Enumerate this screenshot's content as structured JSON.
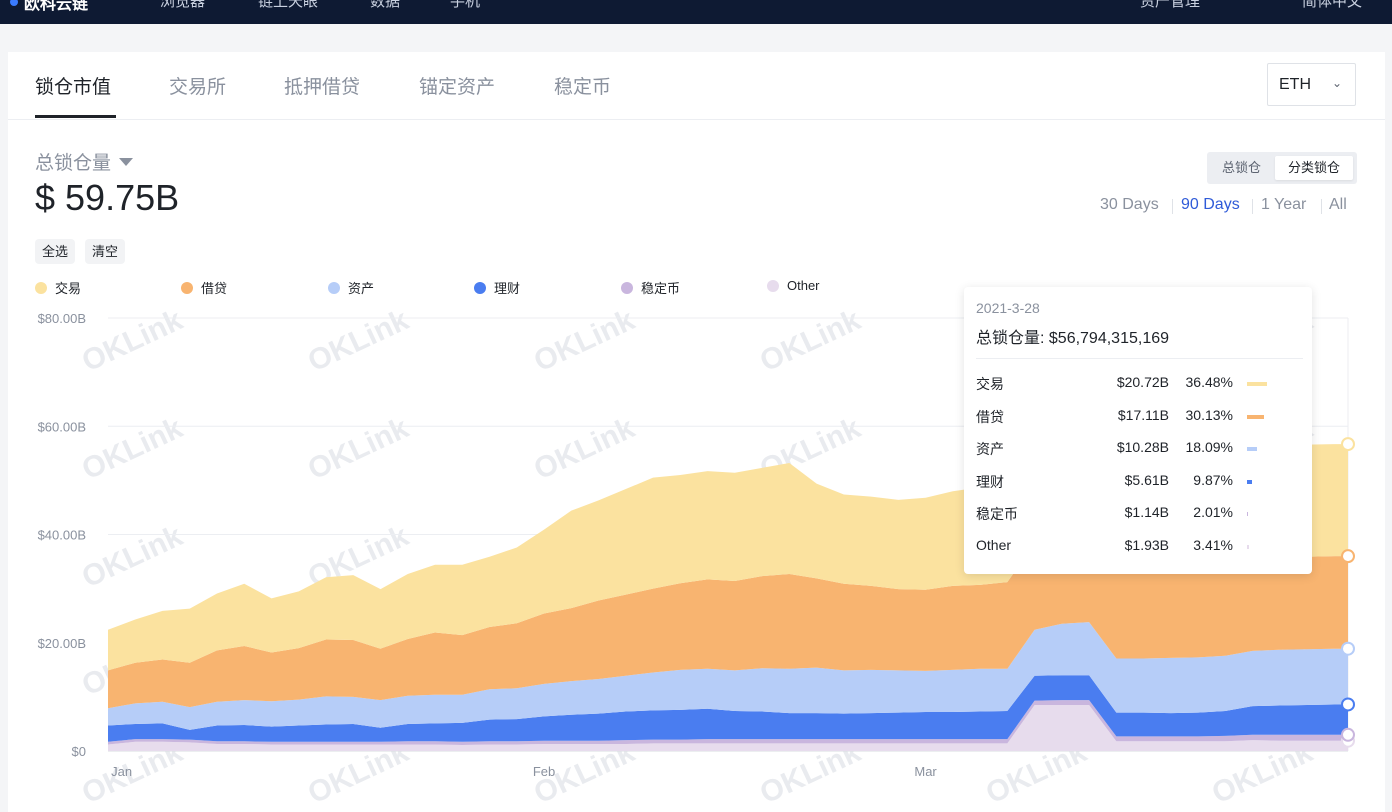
{
  "topbar": {
    "brand": "欧科云链",
    "nav": [
      "浏览器",
      "链上天眼",
      "数据",
      "手机"
    ],
    "right": [
      "资产管理",
      "简体中文"
    ]
  },
  "tabs": [
    {
      "label": "锁仓市值",
      "active": true
    },
    {
      "label": "交易所",
      "active": false
    },
    {
      "label": "抵押借贷",
      "active": false
    },
    {
      "label": "锚定资产",
      "active": false
    },
    {
      "label": "稳定币",
      "active": false
    }
  ],
  "chain_select": {
    "value": "ETH"
  },
  "metric": {
    "label": "总锁仓量",
    "value": "$ 59.75B"
  },
  "select_buttons": {
    "select_all": "全选",
    "clear": "清空"
  },
  "view_toggle": {
    "options": [
      "总锁仓",
      "分类锁仓"
    ],
    "active": "分类锁仓"
  },
  "time_ranges": {
    "options": [
      "30 Days",
      "90 Days",
      "1 Year",
      "All"
    ],
    "active": "90 Days"
  },
  "colors": {
    "交易": "#fbe29f",
    "借贷": "#f8b470",
    "资产": "#b6cdf8",
    "理财": "#4a7df0",
    "稳定币": "#c9b6de",
    "Other": "#e7dced",
    "accent": "#2f5bd8"
  },
  "watermark": "OKLink",
  "tooltip": {
    "date": "2021-3-28",
    "total_label": "总锁仓量: $56,794,315,169",
    "rows": [
      {
        "name": "交易",
        "amount": "$20.72B",
        "pct": "36.48%",
        "share": 0.3648
      },
      {
        "name": "借贷",
        "amount": "$17.11B",
        "pct": "30.13%",
        "share": 0.3013
      },
      {
        "name": "资产",
        "amount": "$10.28B",
        "pct": "18.09%",
        "share": 0.1809
      },
      {
        "name": "理财",
        "amount": "$5.61B",
        "pct": "9.87%",
        "share": 0.0987
      },
      {
        "name": "稳定币",
        "amount": "$1.14B",
        "pct": "2.01%",
        "share": 0.0201
      },
      {
        "name": "Other",
        "amount": "$1.93B",
        "pct": "3.41%",
        "share": 0.0341
      }
    ]
  },
  "chart_data": {
    "type": "area",
    "stacked": true,
    "ylim": [
      0,
      80
    ],
    "y_ticks": [
      "$0",
      "$20.00B",
      "$40.00B",
      "$60.00B",
      "$80.00B"
    ],
    "x_tick_labels": [
      {
        "label": "Jan",
        "day": 1
      },
      {
        "label": "Feb",
        "day": 32
      },
      {
        "label": "Mar",
        "day": 60
      }
    ],
    "x": [
      0,
      2,
      4,
      6,
      8,
      10,
      12,
      14,
      16,
      18,
      20,
      22,
      24,
      26,
      28,
      30,
      32,
      34,
      36,
      38,
      40,
      42,
      44,
      46,
      48,
      50,
      52,
      54,
      56,
      58,
      60,
      62,
      64,
      66,
      68,
      70,
      72,
      74,
      76,
      78,
      80,
      82,
      84,
      86,
      88,
      90,
      91
    ],
    "series": [
      {
        "name": "Other",
        "values": [
          1.2,
          1.7,
          1.7,
          1.6,
          1.3,
          1.3,
          1.2,
          1.2,
          1.2,
          1.2,
          1.2,
          1.2,
          1.2,
          1.1,
          1.2,
          1.2,
          1.3,
          1.3,
          1.3,
          1.3,
          1.4,
          1.4,
          1.4,
          1.4,
          1.4,
          1.4,
          1.4,
          1.4,
          1.4,
          1.4,
          1.4,
          1.4,
          1.4,
          1.4,
          8.5,
          8.5,
          8.5,
          1.8,
          1.8,
          1.8,
          1.8,
          1.8,
          2.0,
          1.9,
          1.9,
          1.9,
          1.9
        ]
      },
      {
        "name": "稳定币",
        "values": [
          0.5,
          0.5,
          0.5,
          0.5,
          0.5,
          0.5,
          0.5,
          0.5,
          0.5,
          0.5,
          0.5,
          0.6,
          0.6,
          0.6,
          0.6,
          0.6,
          0.6,
          0.6,
          0.6,
          0.7,
          0.7,
          0.7,
          0.8,
          0.8,
          0.8,
          0.8,
          0.8,
          0.8,
          0.8,
          0.8,
          0.8,
          0.8,
          0.8,
          0.8,
          0.8,
          0.9,
          0.9,
          0.9,
          0.9,
          0.9,
          0.9,
          1.0,
          1.0,
          1.1,
          1.1,
          1.1,
          1.1
        ]
      },
      {
        "name": "理财",
        "values": [
          3.0,
          2.8,
          2.9,
          1.8,
          2.9,
          3.0,
          2.8,
          3.0,
          3.2,
          3.3,
          2.6,
          3.2,
          3.3,
          3.5,
          4.0,
          4.1,
          4.5,
          4.8,
          5.0,
          5.3,
          5.4,
          5.5,
          5.6,
          5.2,
          5.1,
          4.8,
          4.8,
          4.7,
          4.8,
          4.9,
          5.0,
          5.0,
          5.1,
          5.2,
          4.6,
          4.6,
          4.6,
          4.4,
          4.4,
          4.3,
          4.4,
          4.6,
          5.3,
          5.4,
          5.5,
          5.6,
          5.6
        ]
      },
      {
        "name": "资产",
        "values": [
          3.2,
          3.8,
          4.0,
          4.2,
          4.4,
          4.6,
          4.7,
          4.8,
          5.2,
          5.0,
          5.1,
          5.2,
          5.3,
          5.2,
          5.6,
          5.7,
          6.0,
          6.2,
          6.4,
          6.6,
          7.0,
          7.4,
          7.4,
          7.5,
          8.0,
          8.2,
          8.4,
          8.0,
          8.0,
          7.8,
          7.6,
          7.8,
          7.9,
          7.8,
          8.5,
          9.5,
          9.8,
          10.0,
          10.0,
          10.2,
          10.2,
          10.2,
          10.2,
          10.3,
          10.3,
          10.3,
          10.3
        ]
      },
      {
        "name": "借贷",
        "values": [
          7.0,
          7.5,
          7.8,
          8.2,
          9.5,
          10.0,
          9.0,
          9.5,
          10.5,
          10.5,
          9.5,
          10.5,
          11.5,
          11.0,
          11.5,
          12.0,
          13.0,
          13.5,
          14.5,
          15.0,
          15.5,
          16.0,
          16.5,
          16.5,
          17.0,
          17.5,
          16.5,
          16.0,
          15.5,
          15.0,
          15.0,
          15.5,
          15.5,
          16.0,
          16.0,
          16.5,
          16.5,
          16.5,
          16.5,
          16.8,
          16.8,
          17.0,
          17.0,
          17.1,
          17.1,
          17.1,
          17.1
        ]
      },
      {
        "name": "交易",
        "values": [
          7.5,
          8.0,
          9.0,
          10.0,
          10.5,
          11.5,
          10.0,
          10.5,
          11.5,
          12.0,
          11.0,
          12.0,
          12.5,
          13.0,
          13.0,
          14.0,
          15.5,
          18.0,
          18.5,
          19.5,
          20.5,
          20.0,
          20.0,
          20.0,
          20.0,
          20.5,
          17.5,
          16.5,
          16.5,
          16.5,
          17.0,
          17.5,
          18.0,
          18.5,
          19.0,
          19.5,
          20.0,
          20.0,
          20.2,
          20.5,
          20.5,
          20.6,
          20.7,
          20.7,
          20.7,
          20.7,
          20.7
        ]
      }
    ]
  }
}
